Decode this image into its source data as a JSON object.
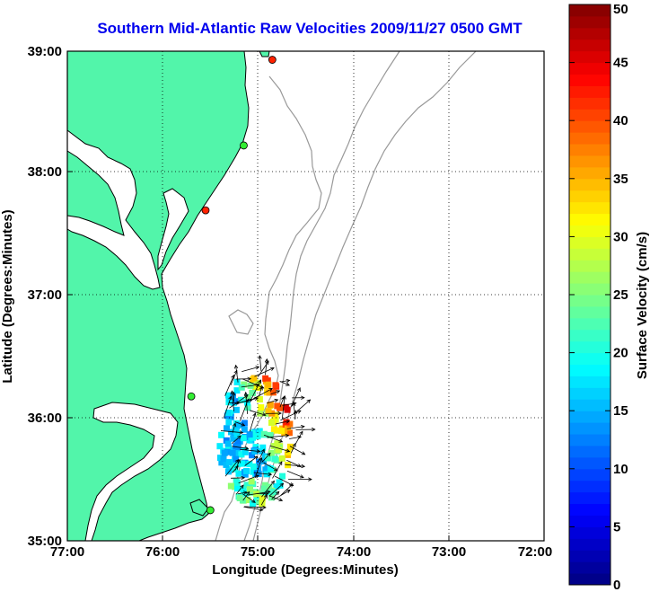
{
  "title": "Southern Mid-Atlantic Raw Velocities 2009/11/27 0500 GMT",
  "axes": {
    "xlabel": "Longitude (Degrees:Minutes)",
    "ylabel": "Latitude (Degrees:Minutes)",
    "x_ticks": [
      "77:00",
      "76:00",
      "75:00",
      "74:00",
      "73:00",
      "72:00"
    ],
    "y_ticks": [
      "39:00",
      "38:00",
      "37:00",
      "36:00",
      "35:00"
    ],
    "lon_range": [
      -77,
      -72
    ],
    "lat_range": [
      35,
      39
    ]
  },
  "colorbar": {
    "label": "Surface Velocity (cm/s)",
    "ticks": [
      "0",
      "5",
      "10",
      "15",
      "20",
      "25",
      "30",
      "35",
      "40",
      "45",
      "50"
    ],
    "range": [
      0,
      50
    ]
  },
  "colors": {
    "land": "#52f5aa",
    "coastline": "#000000",
    "bathymetry": "#999999",
    "grid": "#000000",
    "title": "#0000ee"
  },
  "stations": [
    {
      "lon": -74.85,
      "lat": 38.93,
      "color": "#ff2200"
    },
    {
      "lon": -75.15,
      "lat": 38.23,
      "color": "#33ee33"
    },
    {
      "lon": -75.55,
      "lat": 37.7,
      "color": "#ff2200"
    },
    {
      "lon": -75.7,
      "lat": 36.18,
      "color": "#33ee33"
    },
    {
      "lon": -75.5,
      "lat": 35.25,
      "color": "#33ee33"
    }
  ]
}
